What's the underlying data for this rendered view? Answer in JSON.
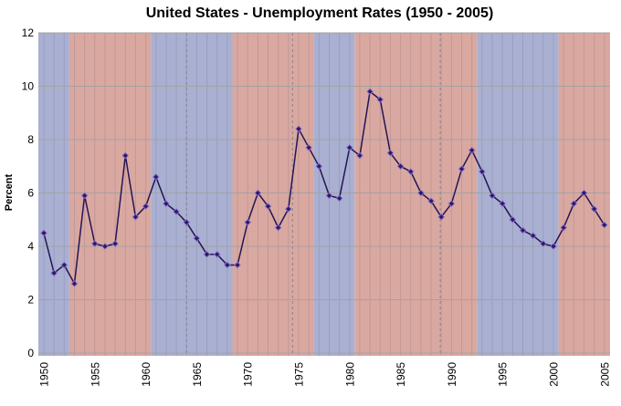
{
  "chart_data": {
    "type": "line",
    "title": "United States - Unemployment Rates (1950 - 2005)",
    "ylabel": "Percent",
    "xlabel": "",
    "legend": "none",
    "grid": "horizontal gray lines every 2 units; faint vertical stripe each year",
    "ylim": [
      0,
      12
    ],
    "xlim": [
      1949.45,
      2005.55
    ],
    "y_ticks": [
      0,
      2,
      4,
      6,
      8,
      10,
      12
    ],
    "y_tick_labels": [
      "0",
      "2",
      "4",
      "6",
      "8",
      "10",
      "12"
    ],
    "x_ticks": [
      1950,
      1955,
      1960,
      1965,
      1970,
      1975,
      1980,
      1985,
      1990,
      1995,
      2000,
      2005
    ],
    "x_tick_labels": [
      "1950",
      "1955",
      "1960",
      "1965",
      "1970",
      "1975",
      "1980",
      "1985",
      "1990",
      "1995",
      "2000",
      "2005"
    ],
    "x": [
      1950,
      1951,
      1952,
      1953,
      1954,
      1955,
      1956,
      1957,
      1958,
      1959,
      1960,
      1961,
      1962,
      1963,
      1964,
      1965,
      1966,
      1967,
      1968,
      1969,
      1970,
      1971,
      1972,
      1973,
      1974,
      1975,
      1976,
      1977,
      1978,
      1979,
      1980,
      1981,
      1982,
      1983,
      1984,
      1985,
      1986,
      1987,
      1988,
      1989,
      1990,
      1991,
      1992,
      1993,
      1994,
      1995,
      1996,
      1997,
      1998,
      1999,
      2000,
      2001,
      2002,
      2003,
      2004,
      2005
    ],
    "values": [
      4.5,
      3.0,
      3.3,
      2.6,
      5.9,
      4.1,
      4.0,
      4.1,
      7.4,
      5.1,
      5.5,
      6.6,
      5.6,
      5.3,
      4.9,
      4.3,
      3.7,
      3.7,
      3.3,
      3.3,
      4.9,
      6.0,
      5.5,
      4.7,
      5.4,
      8.4,
      7.7,
      7.0,
      5.9,
      5.8,
      7.7,
      7.4,
      9.8,
      9.5,
      7.5,
      7.0,
      6.8,
      6.0,
      5.7,
      5.1,
      5.6,
      6.9,
      7.6,
      6.8,
      5.9,
      5.6,
      5.0,
      4.6,
      4.4,
      4.1,
      4.0,
      4.7,
      5.6,
      6.0,
      5.4,
      4.8
    ],
    "background_bands": [
      {
        "from": 1949.45,
        "to": 1952.5,
        "color": "#a9b0d1"
      },
      {
        "from": 1952.5,
        "to": 1960.5,
        "color": "#d9a8a0"
      },
      {
        "from": 1960.5,
        "to": 1968.5,
        "color": "#a9b0d1"
      },
      {
        "from": 1968.5,
        "to": 1976.5,
        "color": "#d9a8a0"
      },
      {
        "from": 1976.5,
        "to": 1980.5,
        "color": "#a9b0d1"
      },
      {
        "from": 1980.5,
        "to": 1992.5,
        "color": "#d9a8a0"
      },
      {
        "from": 1992.5,
        "to": 2000.5,
        "color": "#a9b0d1"
      },
      {
        "from": 2000.5,
        "to": 2005.55,
        "color": "#d9a8a0"
      }
    ],
    "dashed_vlines": [
      1964.0,
      1974.4,
      1988.9
    ],
    "colors": {
      "line": "#241456",
      "marker": "#2a1766",
      "marker_halo": "#9579d8",
      "band_blue": "#a9b0d1",
      "band_red": "#d9a8a0",
      "grid": "#a3a3a3",
      "dashed": "#85858f",
      "stripe": "rgba(70,60,100,0.14)",
      "tick_text": "#000000",
      "title_text": "#000000"
    }
  }
}
